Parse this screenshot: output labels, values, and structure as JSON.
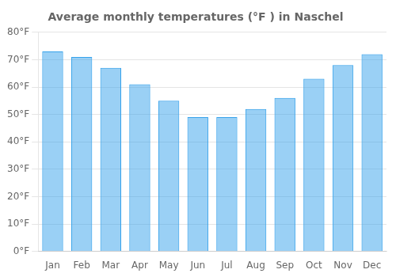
{
  "chart_data": {
    "type": "bar",
    "title": "Average monthly temperatures (°F ) in Naschel",
    "categories": [
      "Jan",
      "Feb",
      "Mar",
      "Apr",
      "May",
      "Jun",
      "Jul",
      "Aug",
      "Sep",
      "Oct",
      "Nov",
      "Dec"
    ],
    "values": [
      73,
      71,
      67,
      61,
      55,
      49,
      49,
      52,
      56,
      63,
      68,
      72
    ],
    "ylim": [
      0,
      80
    ],
    "yticks": [
      {
        "value": 0,
        "label": "0°F"
      },
      {
        "value": 10,
        "label": "10°F"
      },
      {
        "value": 20,
        "label": "20°F"
      },
      {
        "value": 30,
        "label": "30°F"
      },
      {
        "value": 40,
        "label": "40°F"
      },
      {
        "value": 50,
        "label": "50°F"
      },
      {
        "value": 60,
        "label": "60°F"
      },
      {
        "value": 70,
        "label": "70°F"
      },
      {
        "value": 80,
        "label": "80°F"
      }
    ],
    "grid": true
  }
}
